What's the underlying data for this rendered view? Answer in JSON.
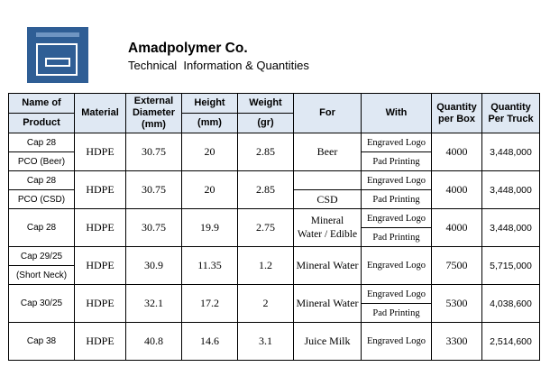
{
  "header": {
    "company": "Amadpolymer Co.",
    "subtitle": "Technical  Information & Quantities",
    "logo_icon": "window-icon",
    "logo_color": "#2f5e95"
  },
  "table": {
    "headers": {
      "name_top": "Name of",
      "name_bottom": "Product",
      "material": "Material",
      "diameter": "External Diameter (mm)",
      "height_top": "Height",
      "height_bottom": "(mm)",
      "weight_top": "Weight",
      "weight_bottom": "(gr)",
      "for": "For",
      "with": "With",
      "qty_box": "Quantity per Box",
      "qty_truck": "Quantity Per Truck"
    },
    "header_bg": "#dfe8f3",
    "rows": [
      {
        "name_top": "Cap 28",
        "name_bottom": "PCO (Beer)",
        "material": "HDPE",
        "diameter": "30.75",
        "height": "20",
        "weight": "2.85",
        "for": "Beer",
        "with_top": "Engraved Logo",
        "with_bottom": "Pad Printing",
        "qty_box": "4000",
        "qty_truck": "3,448,000"
      },
      {
        "name_top": "Cap 28",
        "name_bottom": "PCO (CSD)",
        "material": "HDPE",
        "diameter": "30.75",
        "height": "20",
        "weight": "2.85",
        "for": "CSD",
        "with_top": "Engraved Logo",
        "with_bottom": "Pad Printing",
        "qty_box": "4000",
        "qty_truck": "3,448,000"
      },
      {
        "name": "Cap 28",
        "material": "HDPE",
        "diameter": "30.75",
        "height": "19.9",
        "weight": "2.75",
        "for_top": "Mineral",
        "for_bottom": "Water / Edible",
        "with_top": "Engraved Logo",
        "with_bottom": "Pad Printing",
        "qty_box": "4000",
        "qty_truck": "3,448,000"
      },
      {
        "name_top": "Cap 29/25",
        "name_bottom": "(Short Neck)",
        "material": "HDPE",
        "diameter": "30.9",
        "height": "11.35",
        "weight": "1.2",
        "for": "Mineral Water",
        "with": "Engraved Logo",
        "qty_box": "7500",
        "qty_truck": "5,715,000"
      },
      {
        "name": "Cap 30/25",
        "material": "HDPE",
        "diameter": "32.1",
        "height": "17.2",
        "weight": "2",
        "for": "Mineral Water",
        "with_top": "Engraved Logo",
        "with_bottom": "Pad Printing",
        "qty_box": "5300",
        "qty_truck": "4,038,600"
      },
      {
        "name": "Cap 38",
        "material": "HDPE",
        "diameter": "40.8",
        "height": "14.6",
        "weight": "3.1",
        "for": "Juice Milk",
        "with": "Engraved Logo",
        "qty_box": "3300",
        "qty_truck": "2,514,600"
      }
    ]
  }
}
